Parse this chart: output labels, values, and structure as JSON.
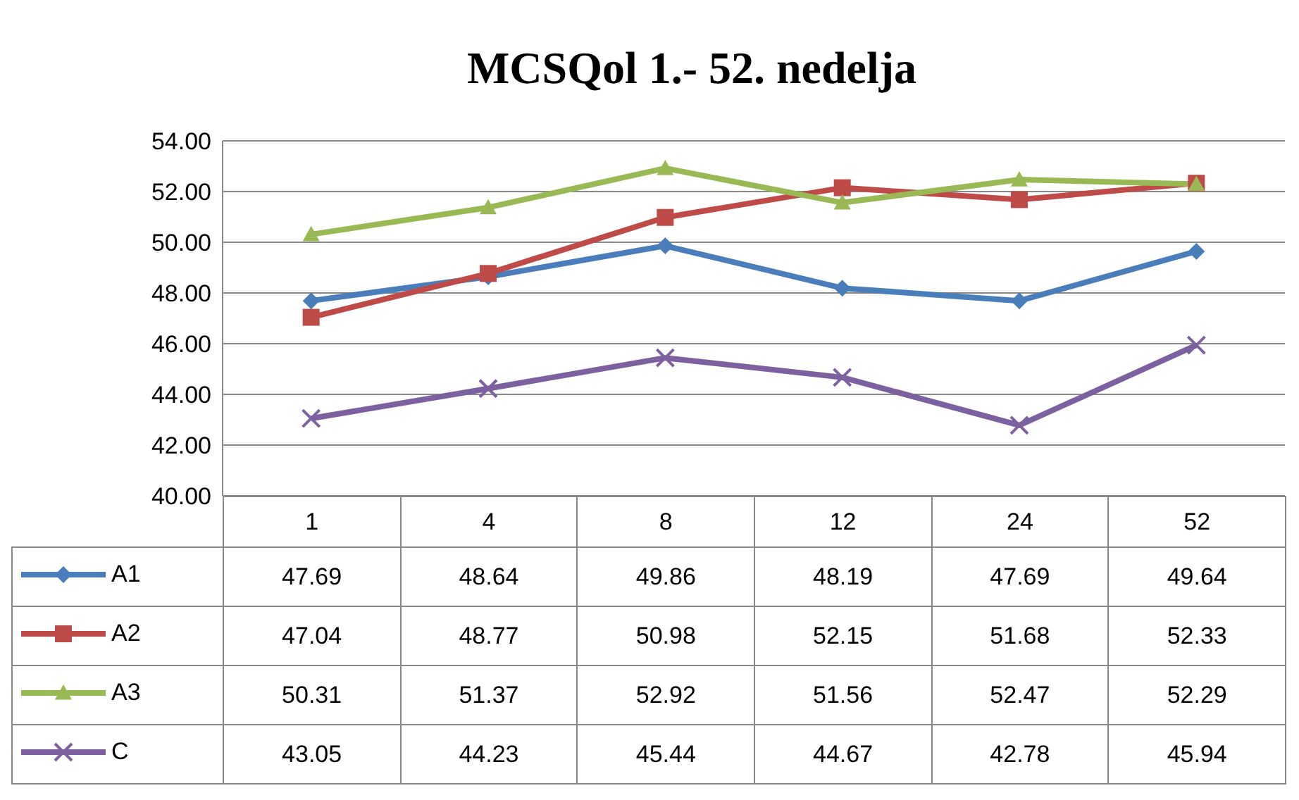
{
  "chart_data": {
    "type": "line",
    "title": "MCSQol 1.- 52. nedelja",
    "categories": [
      "1",
      "4",
      "8",
      "12",
      "24",
      "52"
    ],
    "series": [
      {
        "name": "A1",
        "color": "#4a7ebb",
        "marker": "diamond",
        "values": [
          47.69,
          48.64,
          49.86,
          48.19,
          47.69,
          49.64
        ]
      },
      {
        "name": "A2",
        "color": "#be4b48",
        "marker": "square",
        "values": [
          47.04,
          48.77,
          50.98,
          52.15,
          51.68,
          52.33
        ]
      },
      {
        "name": "A3",
        "color": "#98b954",
        "marker": "triangle",
        "values": [
          50.31,
          51.37,
          52.92,
          51.56,
          52.47,
          52.29
        ]
      },
      {
        "name": "C",
        "color": "#7d60a0",
        "marker": "cross",
        "values": [
          43.05,
          44.23,
          45.44,
          44.67,
          42.78,
          45.94
        ]
      }
    ],
    "ylim": [
      40,
      54
    ],
    "yticks": [
      {
        "value": 40,
        "label": "40.00"
      },
      {
        "value": 42,
        "label": "42.00"
      },
      {
        "value": 44,
        "label": "44.00"
      },
      {
        "value": 46,
        "label": "46.00"
      },
      {
        "value": 48,
        "label": "48.00"
      },
      {
        "value": 50,
        "label": "50.00"
      },
      {
        "value": 52,
        "label": "52.00"
      },
      {
        "value": 54,
        "label": "54.00"
      }
    ],
    "grid": "y",
    "legend": "bottom",
    "data_labels": true
  }
}
